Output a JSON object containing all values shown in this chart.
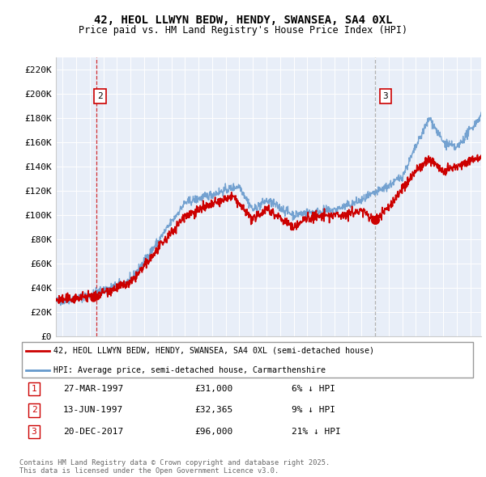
{
  "title": "42, HEOL LLWYN BEDW, HENDY, SWANSEA, SA4 0XL",
  "subtitle": "Price paid vs. HM Land Registry's House Price Index (HPI)",
  "red_label": "42, HEOL LLWYN BEDW, HENDY, SWANSEA, SA4 0XL (semi-detached house)",
  "blue_label": "HPI: Average price, semi-detached house, Carmarthenshire",
  "footer": "Contains HM Land Registry data © Crown copyright and database right 2025.\nThis data is licensed under the Open Government Licence v3.0.",
  "ylim": [
    0,
    230000
  ],
  "yticks": [
    0,
    20000,
    40000,
    60000,
    80000,
    100000,
    120000,
    140000,
    160000,
    180000,
    200000,
    220000
  ],
  "ytick_labels": [
    "£0",
    "£20K",
    "£40K",
    "£60K",
    "£80K",
    "£100K",
    "£120K",
    "£140K",
    "£160K",
    "£180K",
    "£200K",
    "£220K"
  ],
  "xlim_start": 1994.5,
  "xlim_end": 2025.8,
  "background_color": "#ffffff",
  "chart_bg_color": "#f0f4ff",
  "grid_color": "#cccccc",
  "red_color": "#cc0000",
  "blue_color": "#6699cc",
  "transaction1_year": 1997.23,
  "transaction1_price": 31000,
  "transaction2_year": 1997.46,
  "transaction2_price": 32365,
  "transaction3_year": 2017.97,
  "transaction3_price": 96000,
  "table_data": [
    [
      1,
      "27-MAR-1997",
      "£31,000",
      "6% ↓ HPI"
    ],
    [
      2,
      "13-JUN-1997",
      "£32,365",
      "9% ↓ HPI"
    ],
    [
      3,
      "20-DEC-2017",
      "£96,000",
      "21% ↓ HPI"
    ]
  ]
}
